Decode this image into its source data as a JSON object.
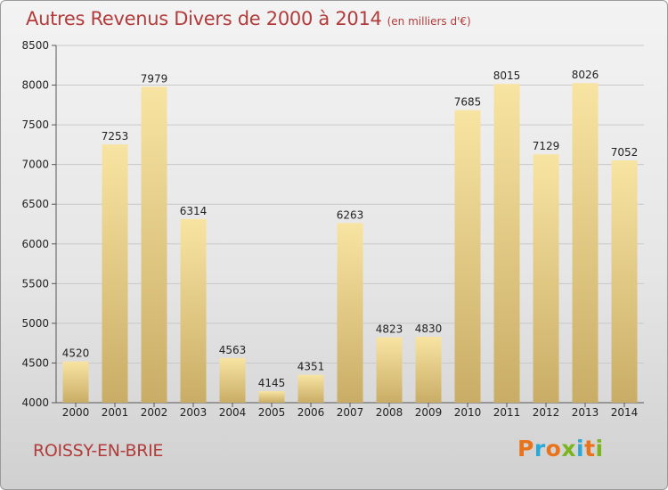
{
  "title": "Autres Revenus Divers de 2000 à 2014",
  "subtitle": "(en milliers d'€)",
  "commune": "ROISSY-EN-BRIE",
  "logo": {
    "text": "Proxiti",
    "colors": [
      "#e8731b",
      "#2aa8d8",
      "#e8731b",
      "#7ab51d",
      "#2aa8d8",
      "#e8731b",
      "#7ab51d"
    ]
  },
  "colors": {
    "title": "#b23c3c",
    "bar_top": "#f8e4a2",
    "bar_bottom": "#c9ad66",
    "grid": "#c8c8c8",
    "text": "#222222"
  },
  "chart_data": {
    "type": "bar",
    "title": "Autres Revenus Divers de 2000 à 2014",
    "subtitle": "(en milliers d'€)",
    "categories": [
      "2000",
      "2001",
      "2002",
      "2003",
      "2004",
      "2005",
      "2006",
      "2007",
      "2008",
      "2009",
      "2010",
      "2011",
      "2012",
      "2013",
      "2014"
    ],
    "values": [
      4520,
      7253,
      7979,
      6314,
      4563,
      4145,
      4351,
      6263,
      4823,
      4830,
      7685,
      8015,
      7129,
      8026,
      7052
    ],
    "ylim": [
      4000,
      8500
    ],
    "yticks": [
      4000,
      4500,
      5000,
      5500,
      6000,
      6500,
      7000,
      7500,
      8000,
      8500
    ],
    "xlabel": "",
    "ylabel": "",
    "grid": true,
    "data_labels": true
  }
}
